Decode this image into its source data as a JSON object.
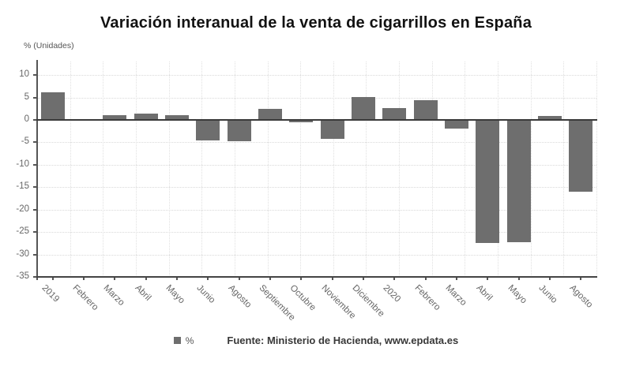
{
  "chart_data": {
    "type": "bar",
    "title": "Variación interanual de la venta de cigarrillos en España",
    "ylabel": "% (Unidades)",
    "legend_label": "%",
    "legend_position": "bottom",
    "source": "Fuente: Ministerio de Hacienda, www.epdata.es",
    "grid": true,
    "ylim": [
      -35,
      13
    ],
    "yticks": [
      10,
      5,
      0,
      -5,
      -10,
      -15,
      -20,
      -25,
      -30,
      -35
    ],
    "categories": [
      "2019",
      "Febrero",
      "Marzo",
      "Abril",
      "Mayo",
      "Junio",
      "Agosto",
      "Septiembre",
      "Octubre",
      "Noviembre",
      "Diciembre",
      "2020",
      "Febrero",
      "Marzo",
      "Abril",
      "Mayo",
      "Junio",
      "Agosto"
    ],
    "values": [
      6.2,
      -0.2,
      1.0,
      1.4,
      1.0,
      -4.6,
      -4.8,
      2.4,
      -0.6,
      -4.2,
      5.1,
      2.7,
      4.3,
      -1.9,
      -27.5,
      -27.3,
      0.8,
      -16.0
    ],
    "bar_color": "#6e6e6e"
  },
  "colors": {
    "bar": "#6e6e6e",
    "title": "#121212",
    "axis": "#555555",
    "zero_line": "#3a3a3a",
    "grid": "#d9d9d9",
    "tick_label": "#666666"
  }
}
